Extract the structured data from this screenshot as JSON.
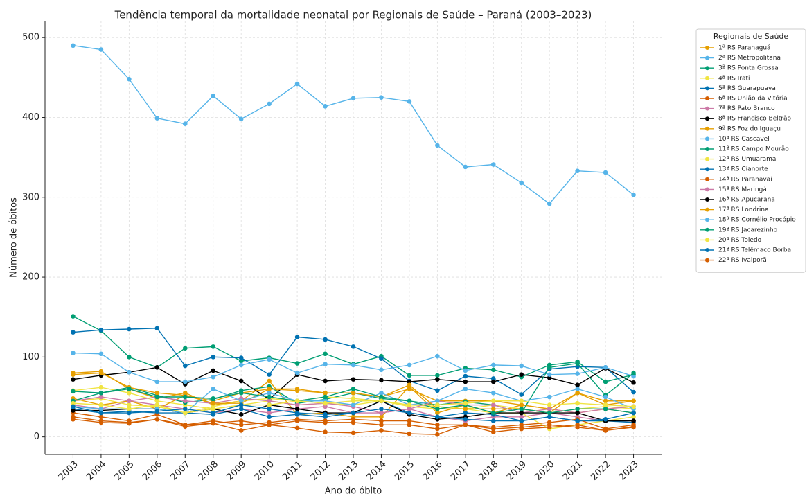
{
  "chart_data": {
    "type": "line",
    "title": "Tendência temporal da mortalidade neonatal por Regionais de Saúde – Paraná (2003–2023)",
    "xlabel": "Ano do óbito",
    "ylabel": "Número de óbitos",
    "legend_title": "Regionais de Saúde",
    "legend": "outside right",
    "grid": true,
    "x": [
      2003,
      2004,
      2005,
      2006,
      2007,
      2008,
      2009,
      2010,
      2011,
      2012,
      2013,
      2014,
      2015,
      2016,
      2017,
      2018,
      2019,
      2020,
      2021,
      2022,
      2023
    ],
    "xlim": [
      2002,
      2024
    ],
    "xticks": [
      2003,
      2004,
      2005,
      2006,
      2007,
      2008,
      2009,
      2010,
      2011,
      2012,
      2013,
      2014,
      2015,
      2016,
      2017,
      2018,
      2019,
      2020,
      2021,
      2022,
      2023
    ],
    "ylim": [
      -22,
      521
    ],
    "yticks": [
      0,
      100,
      200,
      300,
      400,
      500
    ],
    "series": [
      {
        "name": "1ª RS Paranaguá",
        "color": "#E69F00",
        "values": [
          80,
          82,
          60,
          48,
          55,
          40,
          45,
          70,
          28,
          30,
          25,
          25,
          63,
          30,
          40,
          30,
          40,
          35,
          55,
          40,
          45
        ]
      },
      {
        "name": "2ª RS Metropolitana",
        "color": "#56B4E9",
        "values": [
          490,
          485,
          448,
          399,
          392,
          427,
          398,
          417,
          442,
          414,
          424,
          425,
          420,
          365,
          338,
          341,
          318,
          292,
          333,
          331,
          303
        ]
      },
      {
        "name": "3ª RS Ponta Grossa",
        "color": "#009E73",
        "values": [
          151,
          133,
          100,
          87,
          111,
          113,
          95,
          99,
          92,
          104,
          91,
          101,
          77,
          77,
          86,
          84,
          75,
          90,
          94,
          69,
          78
        ]
      },
      {
        "name": "4ª RS Irati",
        "color": "#F0E442",
        "values": [
          58,
          62,
          55,
          45,
          40,
          35,
          40,
          45,
          40,
          42,
          40,
          45,
          38,
          35,
          35,
          30,
          30,
          10,
          15,
          20,
          25
        ]
      },
      {
        "name": "5ª RS Guarapuava",
        "color": "#0072B2",
        "values": [
          131,
          134,
          135,
          136,
          89,
          100,
          99,
          78,
          125,
          122,
          113,
          98,
          70,
          58,
          76,
          73,
          53,
          85,
          88,
          87,
          56
        ]
      },
      {
        "name": "6ª RS União da Vitória",
        "color": "#D55E00",
        "values": [
          25,
          20,
          18,
          22,
          15,
          17,
          8,
          15,
          11,
          6,
          5,
          8,
          4,
          3,
          15,
          6,
          10,
          12,
          15,
          8,
          12
        ]
      },
      {
        "name": "7ª RS Pato Branco",
        "color": "#CC79A7",
        "values": [
          40,
          35,
          45,
          40,
          35,
          30,
          35,
          30,
          35,
          38,
          30,
          30,
          35,
          25,
          20,
          25,
          25,
          30,
          25,
          20,
          20
        ]
      },
      {
        "name": "8ª RS Francisco Beltrão",
        "color": "#000000",
        "values": [
          72,
          77,
          81,
          87,
          66,
          83,
          70,
          47,
          78,
          70,
          72,
          71,
          69,
          72,
          69,
          69,
          78,
          74,
          65,
          86,
          68
        ]
      },
      {
        "name": "9ª RS Foz do Iguaçu",
        "color": "#E69F00",
        "values": [
          48,
          40,
          45,
          35,
          52,
          45,
          55,
          60,
          60,
          55,
          55,
          50,
          60,
          45,
          45,
          45,
          40,
          35,
          30,
          35,
          30
        ]
      },
      {
        "name": "10ª RS Cascavel",
        "color": "#56B4E9",
        "values": [
          105,
          104,
          81,
          69,
          69,
          75,
          90,
          97,
          80,
          91,
          90,
          84,
          90,
          101,
          83,
          90,
          89,
          78,
          79,
          87,
          76
        ]
      },
      {
        "name": "11ª RS Campo Mourão",
        "color": "#009E73",
        "values": [
          57,
          55,
          62,
          52,
          43,
          47,
          58,
          63,
          42,
          47,
          55,
          48,
          45,
          40,
          44,
          40,
          30,
          87,
          92,
          52,
          80
        ]
      },
      {
        "name": "12ª RS Umuarama",
        "color": "#F0E442",
        "values": [
          45,
          48,
          40,
          38,
          30,
          38,
          45,
          48,
          45,
          50,
          48,
          45,
          40,
          38,
          35,
          40,
          35,
          30,
          35,
          38,
          35
        ]
      },
      {
        "name": "13ª RS Cianorte",
        "color": "#0072B2",
        "values": [
          35,
          30,
          32,
          30,
          30,
          28,
          35,
          25,
          28,
          25,
          30,
          45,
          30,
          25,
          30,
          28,
          20,
          25,
          20,
          20,
          18
        ]
      },
      {
        "name": "14ª RS Paranavaí",
        "color": "#D55E00",
        "values": [
          30,
          25,
          20,
          28,
          15,
          20,
          15,
          18,
          22,
          20,
          22,
          20,
          20,
          15,
          15,
          12,
          15,
          18,
          22,
          10,
          15
        ]
      },
      {
        "name": "15ª RS Maringá",
        "color": "#CC79A7",
        "values": [
          45,
          50,
          45,
          50,
          45,
          42,
          48,
          45,
          40,
          42,
          38,
          30,
          35,
          45,
          40,
          40,
          30,
          35,
          30,
          35,
          38
        ]
      },
      {
        "name": "16ª RS Apucarana",
        "color": "#000000",
        "values": [
          33,
          33,
          35,
          35,
          30,
          35,
          28,
          40,
          35,
          30,
          30,
          45,
          28,
          22,
          25,
          30,
          30,
          30,
          30,
          20,
          20
        ]
      },
      {
        "name": "17ª RS Londrina",
        "color": "#E69F00",
        "values": [
          78,
          80,
          62,
          55,
          52,
          42,
          42,
          60,
          58,
          55,
          55,
          50,
          65,
          35,
          35,
          35,
          35,
          30,
          55,
          45,
          45
        ]
      },
      {
        "name": "18ª RS Cornélio Procópio",
        "color": "#56B4E9",
        "values": [
          38,
          35,
          35,
          35,
          30,
          60,
          45,
          55,
          45,
          45,
          40,
          55,
          40,
          45,
          60,
          55,
          45,
          50,
          60,
          50,
          35
        ]
      },
      {
        "name": "19ª RS Jacarezinho",
        "color": "#009E73",
        "values": [
          45,
          55,
          60,
          50,
          50,
          48,
          55,
          50,
          45,
          50,
          60,
          50,
          45,
          35,
          40,
          30,
          35,
          30,
          35,
          35,
          30
        ]
      },
      {
        "name": "20ª RS Toledo",
        "color": "#F0E442",
        "values": [
          42,
          40,
          35,
          40,
          30,
          35,
          40,
          40,
          45,
          42,
          45,
          45,
          40,
          40,
          42,
          45,
          45,
          40,
          42,
          40,
          38
        ]
      },
      {
        "name": "21ª RS Telêmaco Borba",
        "color": "#0072B2",
        "values": [
          38,
          30,
          30,
          32,
          35,
          30,
          40,
          35,
          30,
          28,
          30,
          35,
          30,
          25,
          22,
          20,
          20,
          25,
          20,
          22,
          30
        ]
      },
      {
        "name": "22ª RS Ivaiporã",
        "color": "#D55E00",
        "values": [
          22,
          18,
          17,
          22,
          13,
          17,
          20,
          15,
          20,
          18,
          18,
          15,
          15,
          10,
          15,
          10,
          12,
          15,
          12,
          8,
          13
        ]
      }
    ]
  }
}
